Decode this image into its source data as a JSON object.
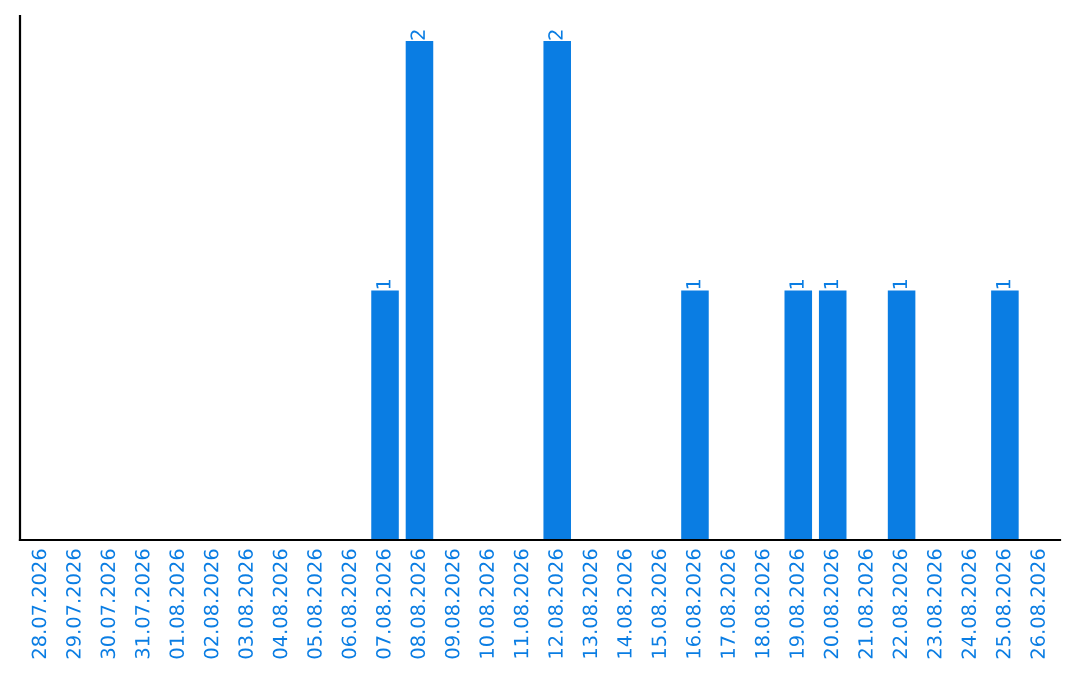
{
  "chart_data": {
    "type": "bar",
    "categories": [
      "28.07.2026",
      "29.07.2026",
      "30.07.2026",
      "31.07.2026",
      "01.08.2026",
      "02.08.2026",
      "03.08.2026",
      "04.08.2026",
      "05.08.2026",
      "06.08.2026",
      "07.08.2026",
      "08.08.2026",
      "09.08.2026",
      "10.08.2026",
      "11.08.2026",
      "12.08.2026",
      "13.08.2026",
      "14.08.2026",
      "15.08.2026",
      "16.08.2026",
      "17.08.2026",
      "18.08.2026",
      "19.08.2026",
      "20.08.2026",
      "21.08.2026",
      "22.08.2026",
      "23.08.2026",
      "24.08.2026",
      "25.08.2026",
      "26.08.2026"
    ],
    "values": [
      0,
      0,
      0,
      0,
      0,
      0,
      0,
      0,
      0,
      0,
      1,
      2,
      0,
      0,
      0,
      2,
      0,
      0,
      0,
      1,
      0,
      0,
      1,
      1,
      0,
      1,
      0,
      0,
      1,
      0
    ],
    "value_labels": [
      null,
      null,
      null,
      null,
      null,
      null,
      null,
      null,
      null,
      null,
      "1",
      "2",
      null,
      null,
      null,
      "2",
      null,
      null,
      null,
      "1",
      null,
      null,
      "1",
      "1",
      null,
      "1",
      null,
      null,
      "1",
      null
    ],
    "color": "#0a7de3",
    "grid": false,
    "legend": false,
    "tick_labels": "x"
  }
}
